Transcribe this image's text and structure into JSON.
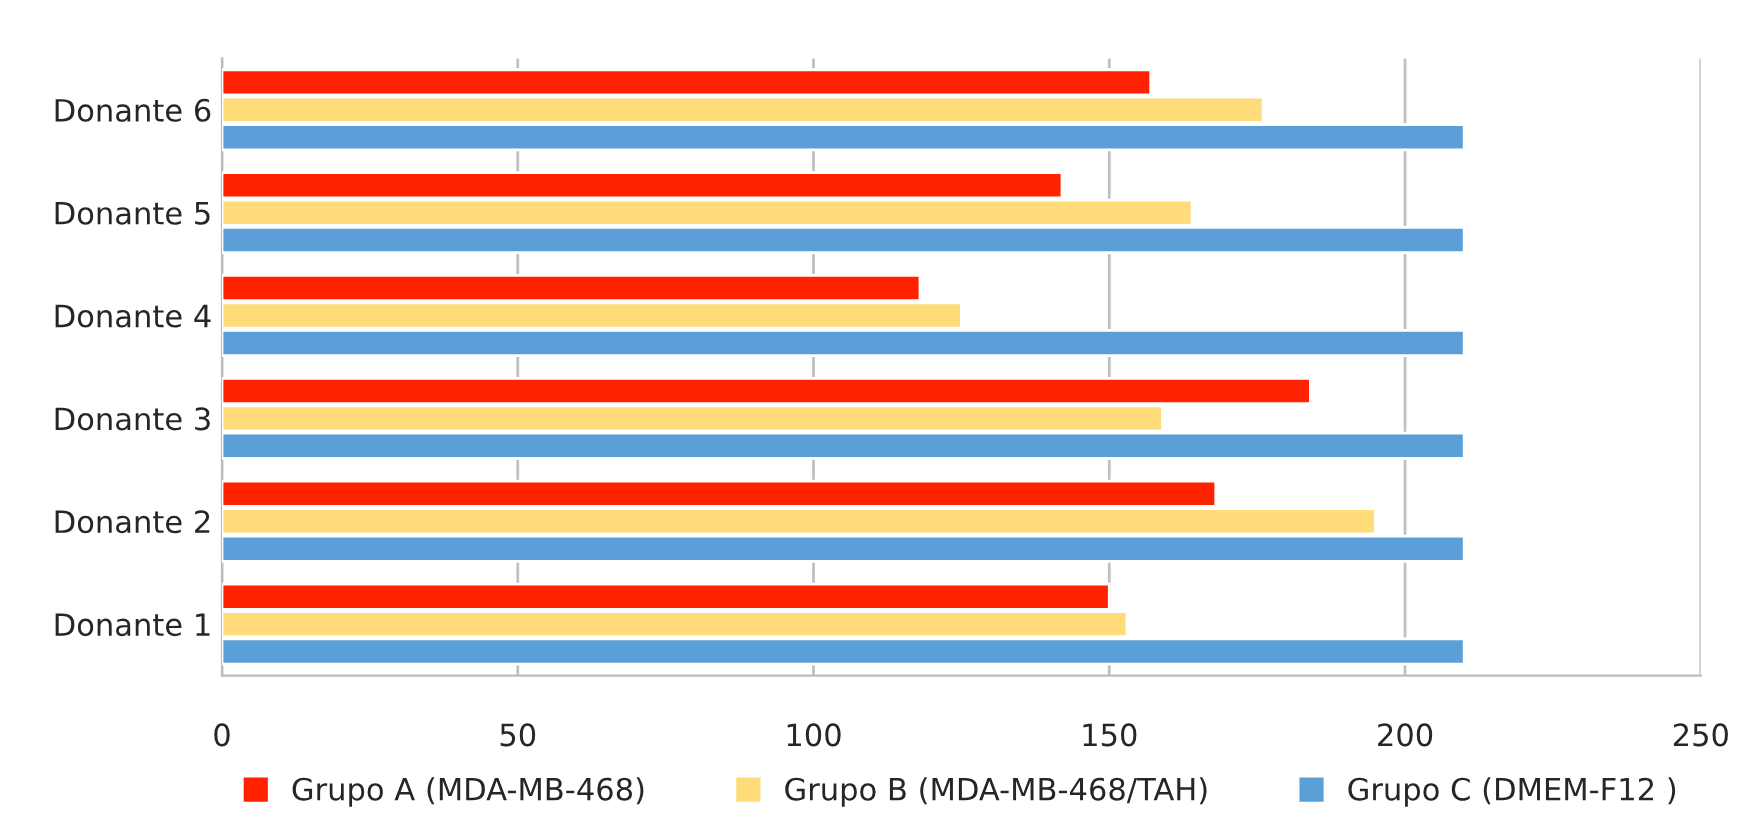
{
  "chart_data": {
    "type": "bar",
    "orientation": "horizontal",
    "categories": [
      "Donante 6",
      "Donante 5",
      "Donante 4",
      "Donante 3",
      "Donante 2",
      "Donante 1"
    ],
    "series": [
      {
        "name": "Grupo A (MDA-MB-468)",
        "color": "#ff2200",
        "values": [
          157,
          142,
          118,
          184,
          168,
          150
        ]
      },
      {
        "name": "Grupo B (MDA-MB-468/TAH)",
        "color": "#ffdb7a",
        "values": [
          176,
          164,
          125,
          159,
          195,
          153
        ]
      },
      {
        "name": "Grupo C (DMEM-F12 )",
        "color": "#5b9fd8",
        "values": [
          210,
          210,
          210,
          210,
          210,
          210
        ]
      }
    ],
    "xlim": [
      0,
      250
    ],
    "xticks": [
      0,
      50,
      100,
      150,
      200,
      250
    ],
    "grid": "x",
    "legend": "bottom"
  }
}
